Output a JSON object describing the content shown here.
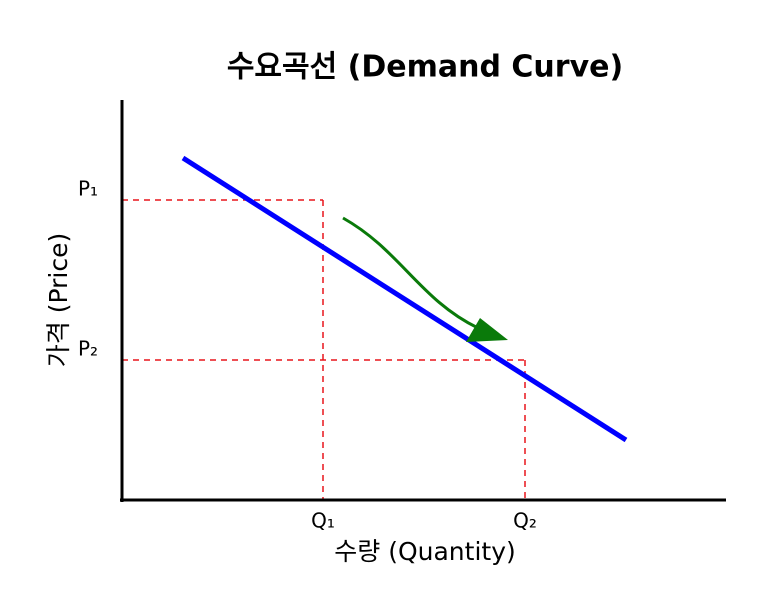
{
  "title": "수요곡선 (Demand Curve)",
  "y_axis_label": "가격 (Price)",
  "x_axis_label": "수량 (Quantity)",
  "price_labels": [
    "P₁",
    "P₂"
  ],
  "quantity_labels": [
    "Q₁",
    "Q₂"
  ]
}
